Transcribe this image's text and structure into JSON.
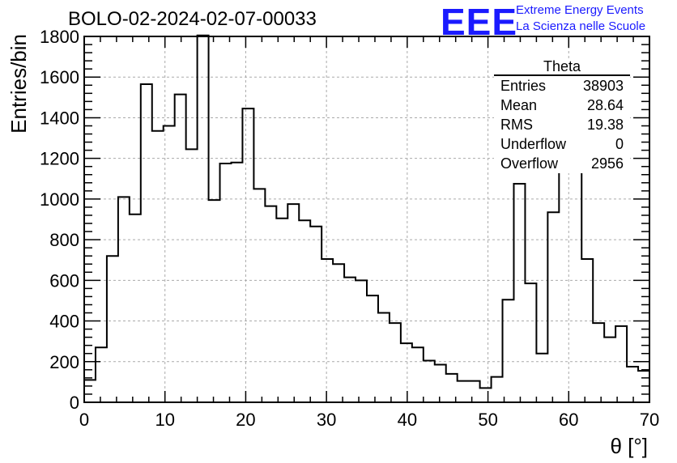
{
  "header": {
    "title": "BOLO-02-2024-02-07-00033",
    "logo": "EEE",
    "logo_line1": "Extreme Energy Events",
    "logo_line2": "La Scienza nelle Scuole",
    "logo_color": "#1a1aff"
  },
  "stats": {
    "title": "Theta",
    "rows": [
      {
        "label": "Entries",
        "value": "38903"
      },
      {
        "label": "Mean",
        "value": "28.64"
      },
      {
        "label": "RMS",
        "value": "19.38"
      },
      {
        "label": "Underflow",
        "value": "0"
      },
      {
        "label": "Overflow",
        "value": "2956"
      }
    ]
  },
  "chart_data": {
    "type": "bar",
    "style": "step-histogram",
    "xlabel": "θ [°]",
    "ylabel": "Entries/bin",
    "xlim": [
      0,
      70
    ],
    "ylim": [
      0,
      1800
    ],
    "bin_width": 1.4286,
    "grid": true,
    "x_ticks": [
      0,
      10,
      20,
      30,
      40,
      50,
      60,
      70
    ],
    "y_ticks": [
      0,
      200,
      400,
      600,
      800,
      1000,
      1200,
      1400,
      1600,
      1800
    ],
    "values": [
      110,
      270,
      720,
      1010,
      925,
      1565,
      1335,
      1360,
      1515,
      1245,
      1805,
      995,
      1175,
      1180,
      1445,
      1050,
      965,
      905,
      975,
      895,
      865,
      705,
      680,
      615,
      600,
      525,
      440,
      390,
      290,
      270,
      205,
      185,
      140,
      105,
      105,
      70,
      125,
      505,
      1075,
      585,
      240,
      935,
      1640,
      1155,
      705,
      390,
      320,
      375,
      175,
      155
    ],
    "line_color": "#000000"
  }
}
